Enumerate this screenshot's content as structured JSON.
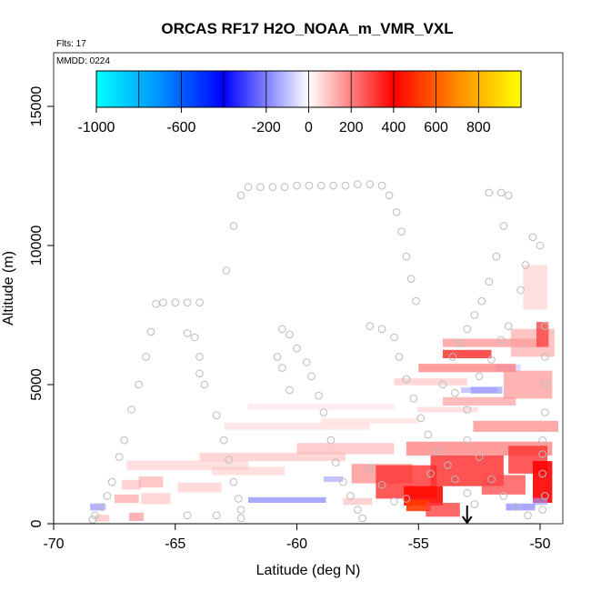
{
  "chart_data": {
    "type": "heatmap",
    "title": "ORCAS RF17 H2O_NOAA_m_VMR_VXL",
    "flight_label": "Flts: 17",
    "date_label": "MMDD: 0224",
    "xlabel": "Latitude (deg N)",
    "ylabel": "Altitude (m)",
    "xlim": [
      -70,
      -49
    ],
    "ylim": [
      0,
      17000
    ],
    "x_ticks": [
      -70,
      -65,
      -60,
      -55,
      -50
    ],
    "x_tick_labels": [
      "-70",
      "-65",
      "-60",
      "-55",
      "-50"
    ],
    "y_ticks": [
      0,
      5000,
      10000,
      15000
    ],
    "y_tick_labels": [
      "0",
      "5000",
      "10000",
      "15000"
    ],
    "colorbar": {
      "range": [
        -1000,
        1000
      ],
      "tick_values": [
        -1000,
        -600,
        -200,
        0,
        200,
        400,
        600,
        800
      ],
      "tick_labels": [
        "-1000",
        "-600",
        "-200",
        "0",
        "200",
        "400",
        "600",
        "800"
      ],
      "colors": [
        "#00ffff",
        "#1e90ff",
        "#0000ff",
        "#ffffff",
        "#ff0000",
        "#ff8c00",
        "#ffff00"
      ]
    },
    "anomaly_cells": [
      {
        "lat": -68.2,
        "alt": 600,
        "w": 0.6,
        "h": 250,
        "v": -180
      },
      {
        "lat": -68.0,
        "alt": 200,
        "w": 0.6,
        "h": 250,
        "v": 120
      },
      {
        "lat": -67.0,
        "alt": 900,
        "w": 1.0,
        "h": 300,
        "v": 160
      },
      {
        "lat": -66.8,
        "alt": 1400,
        "w": 0.8,
        "h": 350,
        "v": 120
      },
      {
        "lat": -66.6,
        "alt": 250,
        "w": 0.6,
        "h": 300,
        "v": 180
      },
      {
        "lat": -66.0,
        "alt": 1500,
        "w": 1.0,
        "h": 400,
        "v": 140
      },
      {
        "lat": -65.8,
        "alt": 900,
        "w": 1.2,
        "h": 400,
        "v": 110
      },
      {
        "lat": -64.5,
        "alt": 2100,
        "w": 5.0,
        "h": 350,
        "v": 90
      },
      {
        "lat": -64.0,
        "alt": 1300,
        "w": 1.8,
        "h": 350,
        "v": 100
      },
      {
        "lat": -62.0,
        "alt": 1900,
        "w": 3.0,
        "h": 300,
        "v": 90
      },
      {
        "lat": -61.0,
        "alt": 2400,
        "w": 6.0,
        "h": 300,
        "v": 110
      },
      {
        "lat": -60.0,
        "alt": 3500,
        "w": 6.0,
        "h": 250,
        "v": 70
      },
      {
        "lat": -59.0,
        "alt": 4200,
        "w": 6.0,
        "h": 200,
        "v": 60
      },
      {
        "lat": -58.0,
        "alt": 2700,
        "w": 4.0,
        "h": 400,
        "v": 130
      },
      {
        "lat": -60.4,
        "alt": 850,
        "w": 3.2,
        "h": 200,
        "v": -200
      },
      {
        "lat": -58.5,
        "alt": 1600,
        "w": 0.8,
        "h": 200,
        "v": -150
      },
      {
        "lat": -57.5,
        "alt": 800,
        "w": 1.2,
        "h": 250,
        "v": 120
      },
      {
        "lat": -56.5,
        "alt": 1800,
        "w": 2.5,
        "h": 700,
        "v": 200
      },
      {
        "lat": -55.5,
        "alt": 1500,
        "w": 2.5,
        "h": 1200,
        "v": 320
      },
      {
        "lat": -54.8,
        "alt": 1000,
        "w": 1.6,
        "h": 700,
        "v": 420
      },
      {
        "lat": -55.0,
        "alt": 650,
        "w": 1.0,
        "h": 400,
        "v": 520
      },
      {
        "lat": -54.0,
        "alt": 500,
        "w": 1.4,
        "h": 500,
        "v": 300
      },
      {
        "lat": -53.0,
        "alt": 1900,
        "w": 3.0,
        "h": 1100,
        "v": 330
      },
      {
        "lat": -52.5,
        "alt": 2700,
        "w": 6.0,
        "h": 500,
        "v": 220
      },
      {
        "lat": -51.5,
        "alt": 1400,
        "w": 1.8,
        "h": 700,
        "v": 280
      },
      {
        "lat": -50.5,
        "alt": 2300,
        "w": 1.6,
        "h": 1000,
        "v": 320
      },
      {
        "lat": -49.9,
        "alt": 1500,
        "w": 0.8,
        "h": 1500,
        "v": 400
      },
      {
        "lat": -51.0,
        "alt": 3500,
        "w": 3.5,
        "h": 400,
        "v": 200
      },
      {
        "lat": -52.5,
        "alt": 4400,
        "w": 3.0,
        "h": 300,
        "v": 170
      },
      {
        "lat": -52.5,
        "alt": 4800,
        "w": 1.5,
        "h": 200,
        "v": -140
      },
      {
        "lat": -51.3,
        "alt": 5600,
        "w": 1.0,
        "h": 250,
        "v": -100
      },
      {
        "lat": -53.0,
        "alt": 5600,
        "w": 4.0,
        "h": 300,
        "v": 220
      },
      {
        "lat": -53.0,
        "alt": 6100,
        "w": 2.0,
        "h": 300,
        "v": 330
      },
      {
        "lat": -52.0,
        "alt": 6500,
        "w": 4.0,
        "h": 300,
        "v": 190
      },
      {
        "lat": -50.5,
        "alt": 5000,
        "w": 2.0,
        "h": 1000,
        "v": 180
      },
      {
        "lat": -50.3,
        "alt": 6500,
        "w": 1.8,
        "h": 1000,
        "v": 150
      },
      {
        "lat": -50.2,
        "alt": 8500,
        "w": 1.0,
        "h": 1600,
        "v": 90
      },
      {
        "lat": -49.9,
        "alt": 6800,
        "w": 0.5,
        "h": 900,
        "v": 300
      },
      {
        "lat": -54.5,
        "alt": 5100,
        "w": 3.0,
        "h": 250,
        "v": 110
      },
      {
        "lat": -53.8,
        "alt": 4100,
        "w": 2.5,
        "h": 200,
        "v": 90
      },
      {
        "lat": -57.0,
        "alt": 3700,
        "w": 4.0,
        "h": 200,
        "v": 70
      },
      {
        "lat": -50.8,
        "alt": 600,
        "w": 1.2,
        "h": 250,
        "v": -200
      },
      {
        "lat": -50.0,
        "alt": 800,
        "w": 0.6,
        "h": 250,
        "v": -160
      },
      {
        "lat": -52.2,
        "alt": 4800,
        "w": 1.3,
        "h": 250,
        "v": -170
      }
    ],
    "flight_points": {
      "ascent_1": [
        [
          -68.4,
          150
        ],
        [
          -68.3,
          300
        ],
        [
          -68.0,
          600
        ],
        [
          -67.8,
          1000
        ],
        [
          -67.6,
          1500
        ],
        [
          -67.3,
          2400
        ],
        [
          -67.1,
          3000
        ],
        [
          -66.8,
          4100
        ],
        [
          -66.5,
          5000
        ],
        [
          -66.2,
          6000
        ],
        [
          -66.0,
          6900
        ],
        [
          -65.8,
          7900
        ]
      ],
      "descent_1": [
        [
          -65.5,
          7950
        ],
        [
          -65.0,
          7950
        ],
        [
          -64.5,
          7950
        ],
        [
          -64.0,
          7950
        ],
        [
          -64.5,
          6850
        ],
        [
          -64.2,
          6700
        ],
        [
          -64.0,
          6000
        ],
        [
          -64.0,
          5400
        ],
        [
          -63.8,
          5000
        ],
        [
          -63.3,
          3900
        ],
        [
          -63.0,
          3000
        ],
        [
          -62.8,
          2300
        ],
        [
          -62.6,
          1500
        ],
        [
          -62.4,
          900
        ],
        [
          -62.3,
          500
        ],
        [
          -62.3,
          200
        ],
        [
          -63.3,
          300
        ],
        [
          -64.5,
          300
        ]
      ],
      "ascent_2": [
        [
          -62.9,
          9100
        ],
        [
          -62.6,
          10700
        ],
        [
          -62.3,
          11800
        ],
        [
          -62.0,
          12100
        ],
        [
          -61.5,
          12100
        ],
        [
          -61.0,
          12100
        ],
        [
          -60.5,
          12100
        ],
        [
          -60.0,
          12150
        ],
        [
          -59.5,
          12150
        ],
        [
          -59.0,
          12150
        ],
        [
          -58.5,
          12150
        ],
        [
          -58.0,
          12150
        ],
        [
          -57.5,
          12200
        ],
        [
          -57.0,
          12200
        ],
        [
          -56.5,
          12150
        ],
        [
          -56.2,
          11800
        ],
        [
          -55.9,
          11200
        ],
        [
          -55.7,
          10500
        ],
        [
          -55.5,
          9600
        ],
        [
          -55.3,
          8800
        ],
        [
          -55.1,
          8000
        ]
      ],
      "profile_mid": [
        [
          -60.8,
          6000
        ],
        [
          -60.6,
          5600
        ],
        [
          -60.3,
          4800
        ],
        [
          -60.6,
          7000
        ],
        [
          -60.3,
          6800
        ],
        [
          -60.0,
          6300
        ],
        [
          -59.6,
          5800
        ],
        [
          -59.4,
          5300
        ],
        [
          -59.1,
          4600
        ],
        [
          -58.9,
          4000
        ],
        [
          -58.6,
          3000
        ],
        [
          -58.4,
          2200
        ],
        [
          -58.1,
          1500
        ],
        [
          -57.8,
          1000
        ],
        [
          -57.5,
          500
        ],
        [
          -57.3,
          200
        ],
        [
          -57.0,
          7100
        ],
        [
          -56.5,
          7000
        ],
        [
          -56.0,
          6700
        ],
        [
          -55.8,
          6000
        ],
        [
          -55.5,
          5200
        ],
        [
          -55.2,
          4500
        ],
        [
          -54.9,
          3800
        ],
        [
          -54.6,
          3200
        ],
        [
          -54.2,
          2600
        ],
        [
          -53.8,
          2100
        ],
        [
          -53.5,
          1600
        ],
        [
          -53.0,
          1100
        ],
        [
          -52.7,
          700
        ],
        [
          -54.0,
          5000
        ],
        [
          -53.5,
          4700
        ],
        [
          -53.0,
          4100
        ],
        [
          -52.5,
          5300
        ],
        [
          -52.0,
          5900
        ],
        [
          -51.6,
          6600
        ],
        [
          -51.3,
          7100
        ],
        [
          -50.8,
          8400
        ],
        [
          -50.6,
          9300
        ],
        [
          -50.3,
          10300
        ],
        [
          -50.0,
          10000
        ],
        [
          -52.1,
          11900
        ],
        [
          -51.6,
          11900
        ],
        [
          -51.3,
          11800
        ],
        [
          -51.5,
          10700
        ],
        [
          -51.8,
          9600
        ],
        [
          -52.1,
          8700
        ],
        [
          -52.4,
          8000
        ],
        [
          -52.7,
          7500
        ],
        [
          -53.0,
          7000
        ],
        [
          -53.3,
          6500
        ],
        [
          -53.6,
          6000
        ],
        [
          -49.8,
          7100
        ],
        [
          -49.8,
          6000
        ],
        [
          -49.8,
          5000
        ],
        [
          -49.8,
          4000
        ],
        [
          -49.9,
          3000
        ],
        [
          -49.9,
          2500
        ],
        [
          -49.9,
          1800
        ],
        [
          -49.8,
          1000
        ],
        [
          -49.9,
          500
        ],
        [
          -50.5,
          300
        ],
        [
          -51.0,
          600
        ],
        [
          -51.5,
          1000
        ],
        [
          -52.0,
          1600
        ],
        [
          -52.5,
          2400
        ],
        [
          -53.0,
          3000
        ],
        [
          -56.0,
          800
        ],
        [
          -54.5,
          1800
        ],
        [
          -55.5,
          900
        ],
        [
          -56.5,
          1400
        ],
        [
          -57.0,
          2000
        ]
      ]
    },
    "marker": {
      "lat": -53.0,
      "label": "arrow-down"
    }
  }
}
